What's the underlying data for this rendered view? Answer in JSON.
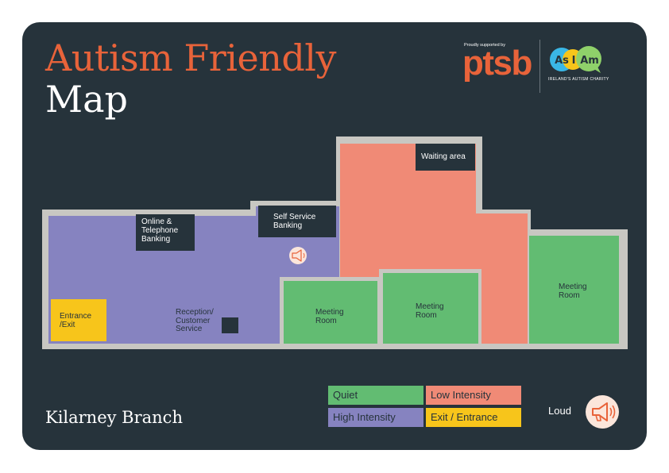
{
  "title": {
    "line1": "Autism Friendly",
    "line2": "Map"
  },
  "branch": "Kilarney Branch",
  "sponsor": {
    "note": "Proudly supported by",
    "ptsb": "ptsb",
    "asiam_word_1": "As",
    "asiam_word_2": "I",
    "asiam_word_3": "Am",
    "asiam_caption": "IRELAND'S AUTISM CHARITY"
  },
  "rooms": {
    "online_banking": [
      "Online &",
      "Telephone",
      "Banking"
    ],
    "self_service": [
      "Self Service",
      "Banking"
    ],
    "waiting_area": "Waiting area",
    "entrance": [
      "Entrance",
      "/Exit"
    ],
    "reception": [
      "Reception/",
      "Customer",
      "Service"
    ],
    "meeting_room_1": [
      "Meeting",
      "Room"
    ],
    "meeting_room_2": [
      "Meeting",
      "Room"
    ],
    "meeting_room_3": [
      "Meeting",
      "Room"
    ]
  },
  "legend": {
    "quiet": "Quiet",
    "low_intensity": "Low Intensity",
    "high_intensity": "High Intensity",
    "exit_entrance": "Exit / Entrance",
    "loud": "Loud"
  },
  "colors": {
    "background": "#26333b",
    "quiet": "#62bc72",
    "low_intensity": "#f08a76",
    "high_intensity": "#8683c0",
    "exit_entrance": "#f7c51b",
    "wall": "#c8c7c2",
    "accent": "#e8633a"
  },
  "icons": [
    "megaphone-icon"
  ]
}
